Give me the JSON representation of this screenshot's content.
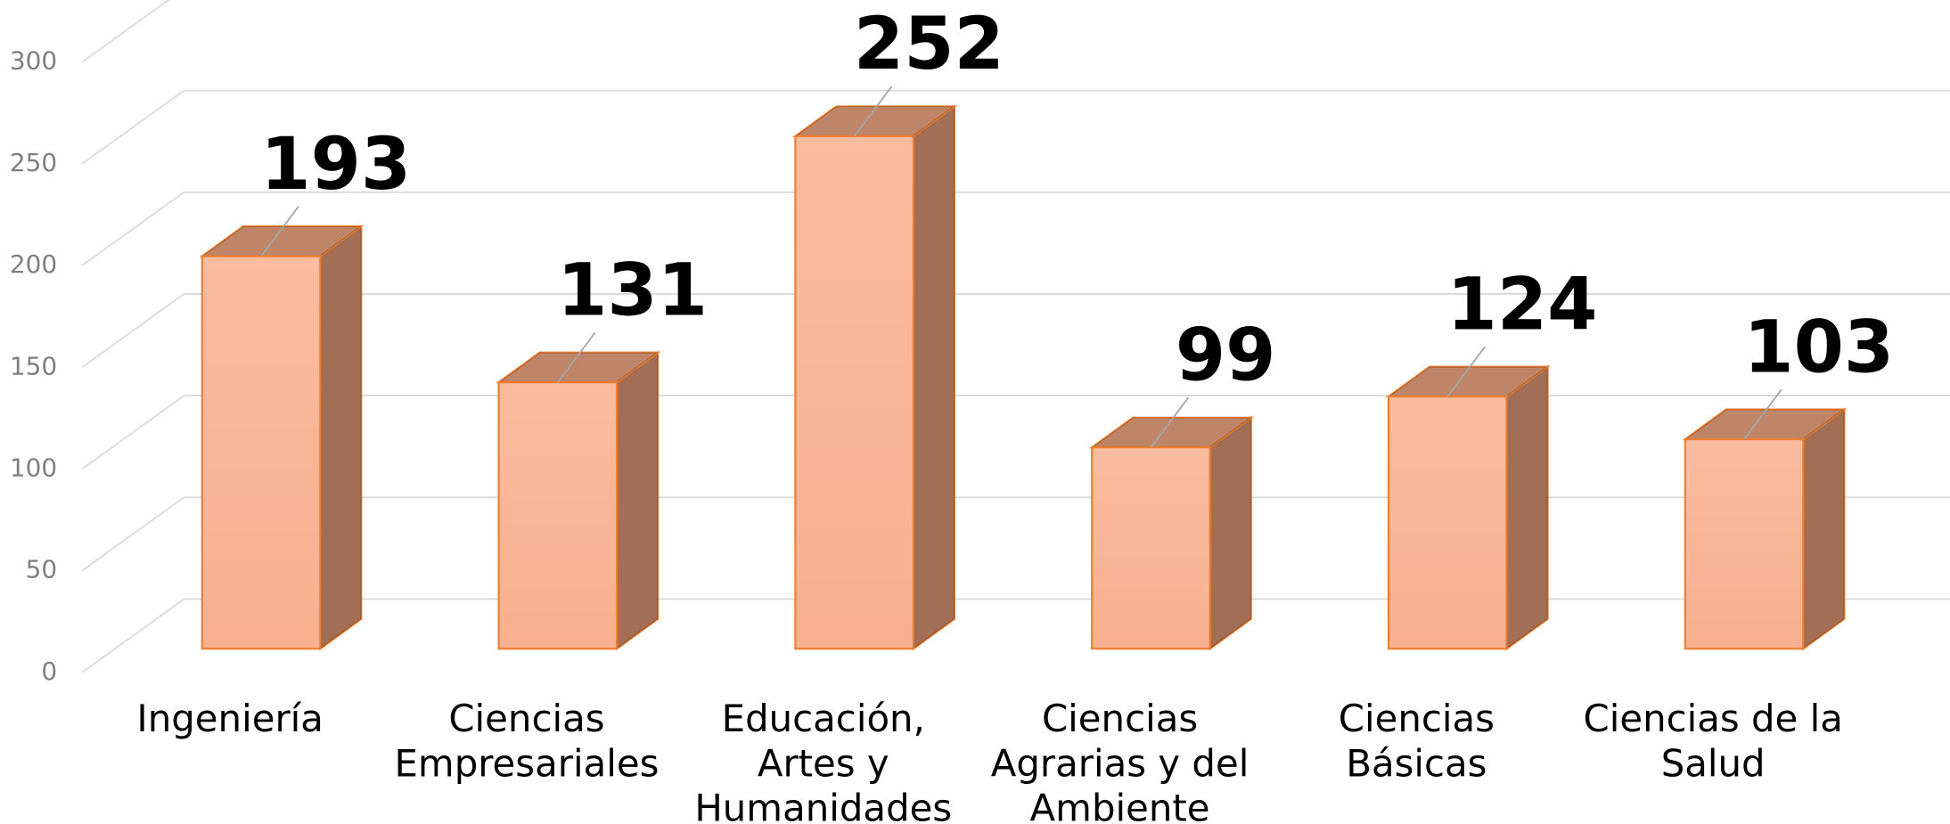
{
  "chart_data": {
    "type": "bar3d",
    "categories": [
      "Ingeniería",
      "Ciencias Empresariales",
      "Educación, Artes y Humanidades",
      "Ciencias Agrarias y del Ambiente",
      "Ciencias Básicas",
      "Ciencias de la Salud"
    ],
    "values": [
      193,
      131,
      252,
      99,
      124,
      103
    ],
    "color": "#f8b08e",
    "ylim": [
      0,
      300
    ],
    "yticks": [
      0,
      50,
      100,
      150,
      200,
      250,
      300
    ],
    "grid": true
  }
}
